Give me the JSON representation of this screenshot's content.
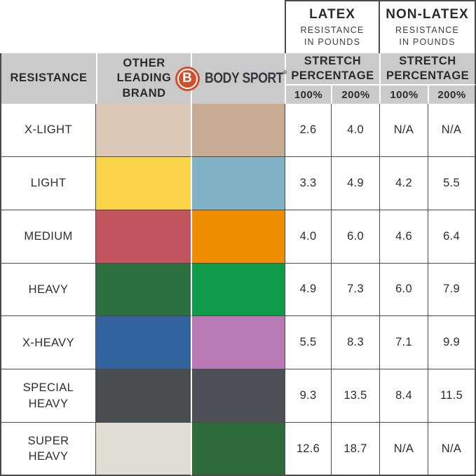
{
  "header": {
    "latex": {
      "title": "LATEX",
      "subtitle": "RESISTANCE IN POUNDS"
    },
    "non_latex": {
      "title": "NON-LATEX",
      "subtitle": "RESISTANCE IN POUNDS"
    },
    "resistance_label": "RESISTANCE",
    "other_brand_label": "OTHER LEADING BRAND",
    "stretch_label": "STRETCH PERCENTAGE",
    "pct_100": "100%",
    "pct_200": "200%",
    "brand": {
      "logo_letter": "B",
      "word1": "BODY",
      "word2": "SPORT",
      "registered": "®",
      "logo_color": "#d1502a"
    }
  },
  "colors": {
    "header_gray": "#cacaca",
    "grid_line": "#4a4a4a",
    "text_dark": "#2d2d2d"
  },
  "chart_data": {
    "type": "table",
    "header_columns": [
      "RESISTANCE",
      "OTHER LEADING BRAND",
      "BODY SPORT"
    ],
    "column_groups": [
      {
        "label": "LATEX RESISTANCE IN POUNDS",
        "sub_label": "STRETCH PERCENTAGE",
        "columns": [
          "100%",
          "200%"
        ]
      },
      {
        "label": "NON-LATEX RESISTANCE IN POUNDS",
        "sub_label": "STRETCH PERCENTAGE",
        "columns": [
          "100%",
          "200%"
        ]
      }
    ],
    "rows": [
      {
        "label": "X-LIGHT",
        "other_brand_color": "#dbc8b6",
        "body_sport_color": "#c7ab92",
        "latex_100": "2.6",
        "latex_200": "4.0",
        "non_latex_100": "N/A",
        "non_latex_200": "N/A"
      },
      {
        "label": "LIGHT",
        "other_brand_color": "#fbd348",
        "body_sport_color": "#81b2c5",
        "latex_100": "3.3",
        "latex_200": "4.9",
        "non_latex_100": "4.2",
        "non_latex_200": "5.5"
      },
      {
        "label": "MEDIUM",
        "other_brand_color": "#c2555f",
        "body_sport_color": "#ee8d00",
        "latex_100": "4.0",
        "latex_200": "6.0",
        "non_latex_100": "4.6",
        "non_latex_200": "6.4"
      },
      {
        "label": "HEAVY",
        "other_brand_color": "#2d6e40",
        "body_sport_color": "#0f9b49",
        "latex_100": "4.9",
        "latex_200": "7.3",
        "non_latex_100": "6.0",
        "non_latex_200": "7.9"
      },
      {
        "label": "X-HEAVY",
        "other_brand_color": "#33639f",
        "body_sport_color": "#b979b4",
        "latex_100": "5.5",
        "latex_200": "8.3",
        "non_latex_100": "7.1",
        "non_latex_200": "9.9"
      },
      {
        "label": "SPECIAL HEAVY",
        "other_brand_color": "#494d50",
        "body_sport_color": "#4d5057",
        "latex_100": "9.3",
        "latex_200": "13.5",
        "non_latex_100": "8.4",
        "non_latex_200": "11.5"
      },
      {
        "label": "SUPER HEAVY",
        "other_brand_color": "#e0ddd2",
        "body_sport_color": "#2e6b3a",
        "latex_100": "12.6",
        "latex_200": "18.7",
        "non_latex_100": "N/A",
        "non_latex_200": "N/A"
      }
    ]
  }
}
